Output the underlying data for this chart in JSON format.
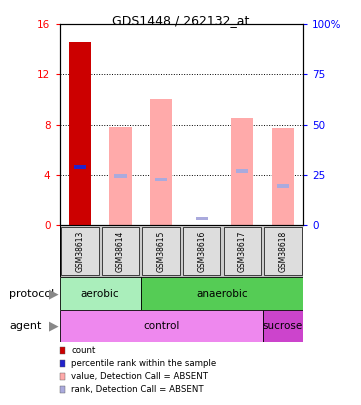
{
  "title": "GDS1448 / 262132_at",
  "samples": [
    "GSM38613",
    "GSM38614",
    "GSM38615",
    "GSM38616",
    "GSM38617",
    "GSM38618"
  ],
  "left_ylim": [
    0,
    16
  ],
  "right_ylim": [
    0,
    100
  ],
  "left_yticks": [
    0,
    4,
    8,
    12,
    16
  ],
  "right_yticks": [
    0,
    25,
    50,
    75,
    100
  ],
  "left_yticklabels": [
    "0",
    "4",
    "8",
    "12",
    "16"
  ],
  "right_yticklabels": [
    "0",
    "25",
    "50",
    "75",
    "100%"
  ],
  "count_bars": [
    14.6,
    0,
    0,
    0,
    0,
    0
  ],
  "count_color": "#cc0000",
  "pink_bars": [
    0,
    7.8,
    10.0,
    0,
    8.5,
    7.7
  ],
  "pink_color": "#ffaaaa",
  "blue_squares_val": [
    4.6,
    3.9,
    3.6,
    0.5,
    4.3,
    3.1
  ],
  "blue_color_dark": "#2222cc",
  "blue_color_light": "#aaaadd",
  "aerobic_color": "#aaeebb",
  "anaerobic_color": "#55cc55",
  "control_color": "#ee88ee",
  "sucrose_color": "#cc44cc",
  "bg_color": "#ffffff",
  "bar_width": 0.55,
  "legend_items": [
    {
      "color": "#cc0000",
      "label": "count"
    },
    {
      "color": "#2222cc",
      "label": "percentile rank within the sample"
    },
    {
      "color": "#ffaaaa",
      "label": "value, Detection Call = ABSENT"
    },
    {
      "color": "#aaaadd",
      "label": "rank, Detection Call = ABSENT"
    }
  ]
}
